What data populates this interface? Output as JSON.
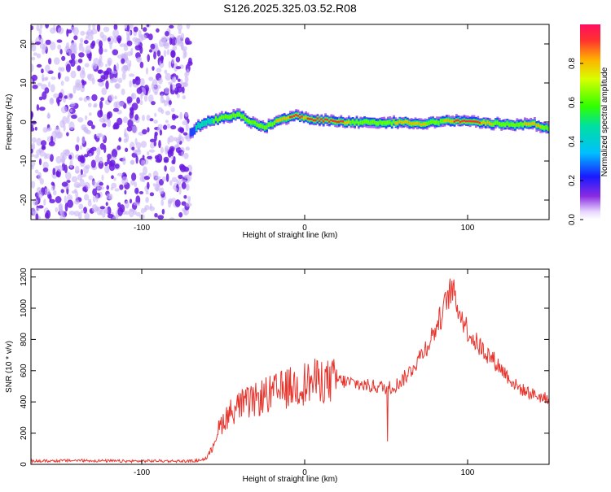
{
  "title": "S126.2025.325.03.52.R08",
  "colors": {
    "snr_line": "#e8362f",
    "noise_dot_dark": "#6a1be0",
    "noise_dot_light": "#c9b6f5",
    "frame": "#000000"
  },
  "chart_data": [
    {
      "type": "heatmap",
      "title": "S126.2025.325.03.52.R08",
      "xlabel": "Height of straight line (km)",
      "ylabel": "Frequency (Hz)",
      "xlim": [
        -168,
        150
      ],
      "ylim": [
        -25,
        25
      ],
      "xticks": [
        -100,
        0,
        100
      ],
      "yticks": [
        -20,
        -10,
        0,
        10,
        20
      ],
      "colorbar": {
        "label": "Normalized spectral amplitude",
        "range": [
          0.0,
          1.0
        ],
        "ticks": [
          "0.0",
          "0.2",
          "0.4",
          "0.6",
          "0.8"
        ],
        "colormap": "rainbow (violet to red)"
      },
      "noise_region_x": [
        -168,
        -70
      ],
      "signal_track": {
        "x": [
          -70,
          -65,
          -60,
          -55,
          -50,
          -45,
          -40,
          -35,
          -30,
          -25,
          -20,
          -15,
          -10,
          -5,
          0,
          10,
          20,
          30,
          40,
          50,
          60,
          70,
          80,
          90,
          100,
          110,
          120,
          130,
          140,
          150
        ],
        "freq": [
          -3,
          -1,
          0,
          0.5,
          1,
          1.5,
          2,
          0.5,
          -0.5,
          -1.5,
          -0.5,
          0.5,
          1,
          1.5,
          1,
          0.5,
          0,
          0,
          0,
          -0.3,
          0,
          -0.5,
          0,
          0.3,
          0,
          -0.2,
          -0.5,
          -0.7,
          -0.5,
          -1.5
        ],
        "amplitude": [
          0.3,
          0.5,
          0.5,
          0.6,
          0.7,
          0.6,
          0.6,
          0.7,
          0.7,
          0.8,
          0.8,
          0.9,
          0.9,
          1.0,
          0.9,
          1.0,
          1.0,
          0.8,
          0.8,
          0.8,
          0.9,
          0.9,
          0.8,
          0.9,
          1.0,
          0.9,
          0.8,
          0.8,
          0.9,
          0.8
        ]
      }
    },
    {
      "type": "line",
      "xlabel": "Height of straight line (km)",
      "ylabel": "SNR (10 * v/v)",
      "xlim": [
        -168,
        150
      ],
      "ylim": [
        0,
        1250
      ],
      "xticks": [
        -100,
        0,
        100
      ],
      "yticks": [
        0,
        200,
        400,
        600,
        800,
        1000,
        1200
      ],
      "series": [
        {
          "x": [
            -168,
            -140,
            -110,
            -90,
            -70,
            -65,
            -60,
            -57,
            -54,
            -50,
            -45,
            -40,
            -35,
            -30,
            -25,
            -20,
            -15,
            -10,
            -5,
            0,
            5,
            10,
            15,
            20,
            25,
            30,
            35,
            40,
            45,
            50,
            55,
            60,
            65,
            70,
            75,
            80,
            85,
            88,
            90,
            92,
            95,
            100,
            105,
            110,
            115,
            120,
            125,
            130,
            135,
            140,
            145,
            150
          ],
          "y": [
            20,
            25,
            20,
            22,
            20,
            25,
            40,
            100,
            200,
            280,
            340,
            380,
            390,
            410,
            440,
            450,
            470,
            490,
            500,
            520,
            530,
            540,
            530,
            540,
            530,
            520,
            510,
            500,
            500,
            490,
            500,
            540,
            600,
            680,
            760,
            860,
            980,
            1080,
            1120,
            1080,
            980,
            860,
            780,
            730,
            680,
            620,
            560,
            500,
            470,
            450,
            430,
            420
          ]
        }
      ]
    }
  ]
}
